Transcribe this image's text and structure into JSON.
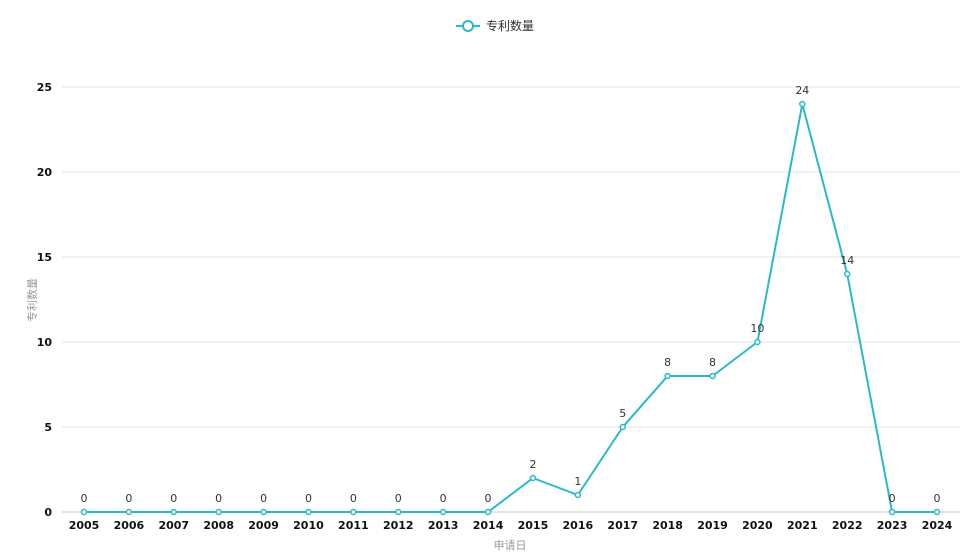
{
  "chart_data": {
    "type": "line",
    "legend": {
      "label": "专利数量",
      "position": "top-center"
    },
    "xlabel": "申请日",
    "ylabel": "专利数量",
    "ylim": [
      0,
      25
    ],
    "yticks": [
      0,
      5,
      10,
      15,
      20,
      25
    ],
    "grid": true,
    "color": "#2bb9c6",
    "x": [
      "2005",
      "2006",
      "2007",
      "2008",
      "2009",
      "2010",
      "2011",
      "2012",
      "2013",
      "2014",
      "2015",
      "2016",
      "2017",
      "2018",
      "2019",
      "2020",
      "2021",
      "2022",
      "2023",
      "2024"
    ],
    "series": [
      {
        "name": "专利数量",
        "values": [
          0,
          0,
          0,
          0,
          0,
          0,
          0,
          0,
          0,
          0,
          2,
          1,
          5,
          8,
          8,
          10,
          24,
          14,
          0,
          0
        ]
      }
    ]
  }
}
